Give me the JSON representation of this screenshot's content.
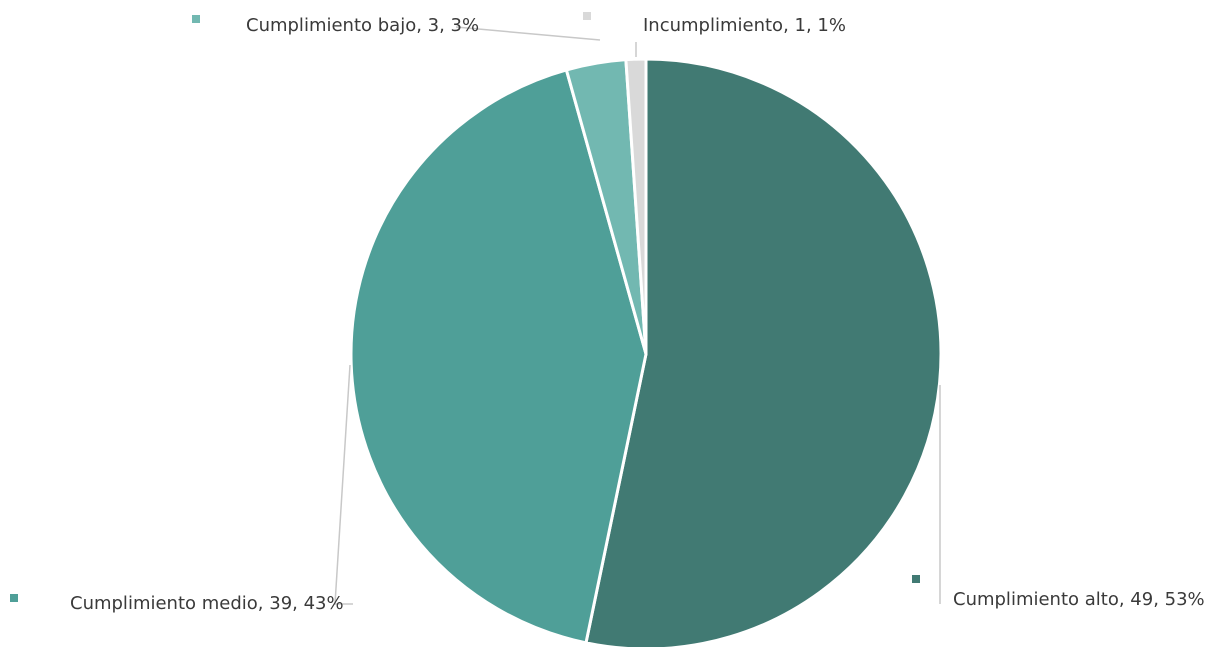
{
  "chart_data": {
    "type": "pie",
    "title": "",
    "slices": [
      {
        "name": "Cumplimiento alto",
        "value": 49,
        "percent": "53%",
        "label": "Cumplimiento alto, 49, 53%",
        "color": "#417a73"
      },
      {
        "name": "Cumplimiento medio",
        "value": 39,
        "percent": "43%",
        "label": "Cumplimiento medio, 39, 43%",
        "color": "#4f9f98"
      },
      {
        "name": "Cumplimiento bajo",
        "value": 3,
        "percent": "3%",
        "label": "Cumplimiento bajo, 3, 3%",
        "color": "#72b8b1"
      },
      {
        "name": "Incumplimiento",
        "value": 1,
        "percent": "1%",
        "label": "Incumplimiento, 1, 1%",
        "color": "#d9d9d9"
      }
    ],
    "start_angle_deg": 0,
    "direction": "clockwise",
    "legend": "none",
    "data_labels": "outside-with-leader-lines"
  }
}
